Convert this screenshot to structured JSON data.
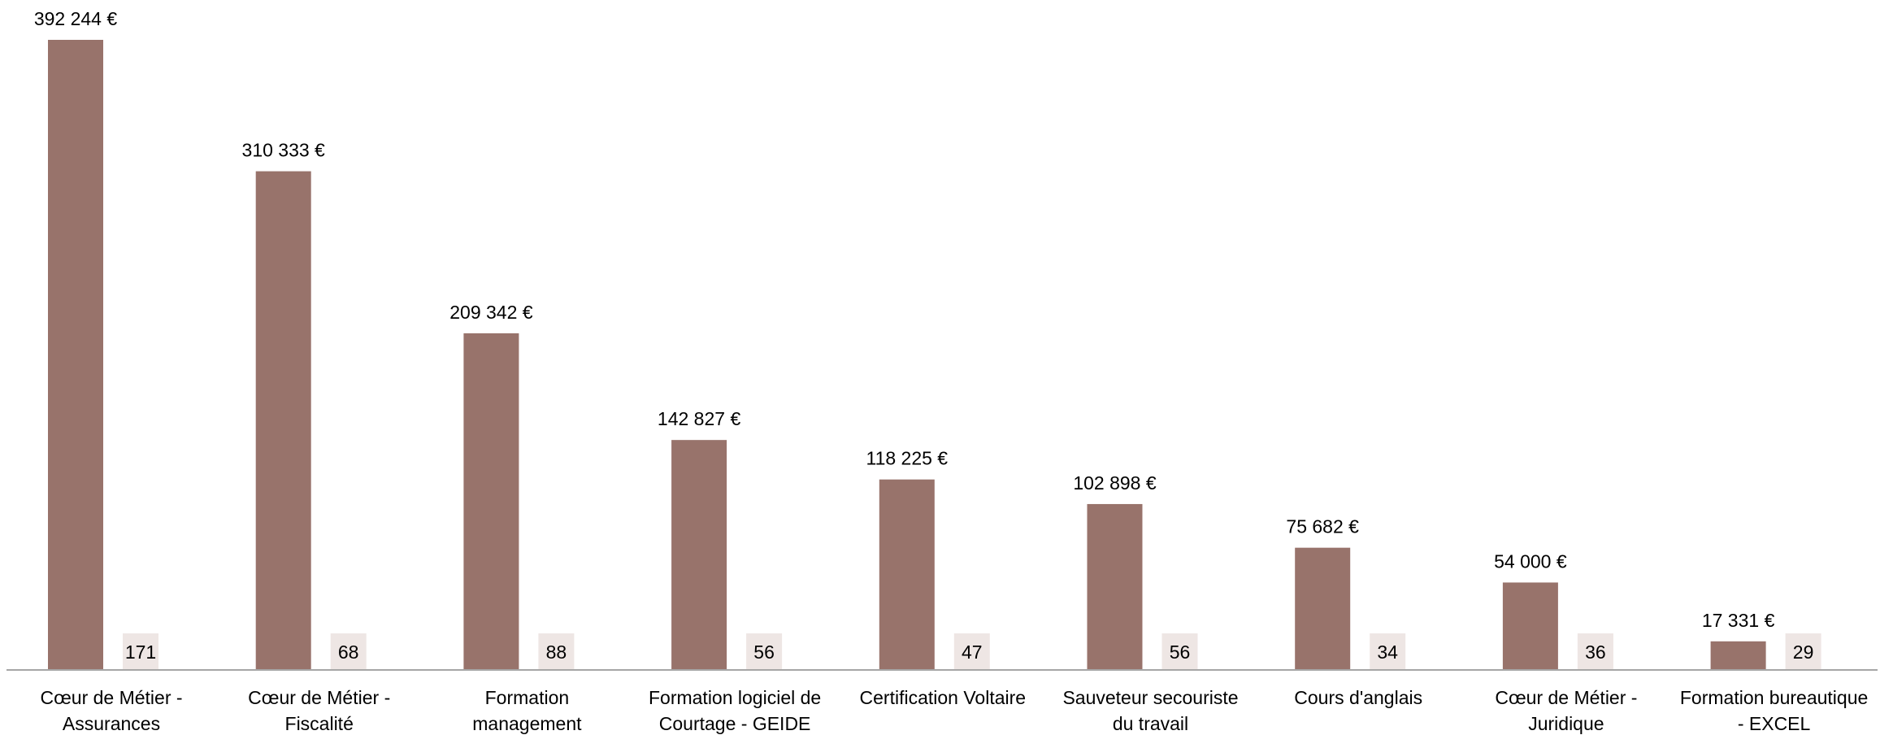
{
  "chart_data": {
    "type": "bar",
    "title": "",
    "xlabel": "",
    "ylabel": "",
    "categories": [
      [
        "Cœur de Métier -",
        "Assurances"
      ],
      [
        "Cœur de Métier -",
        "Fiscalité"
      ],
      [
        "Formation",
        "management"
      ],
      [
        "Formation logiciel de",
        "Courtage - GEIDE"
      ],
      [
        "Certification Voltaire"
      ],
      [
        "Sauveteur secouriste",
        "du travail"
      ],
      [
        "Cours d'anglais"
      ],
      [
        "Cœur de Métier -",
        "Juridique"
      ],
      [
        "Formation bureautique",
        "- EXCEL"
      ]
    ],
    "values": [
      392244,
      310333,
      209342,
      142827,
      118225,
      102898,
      75682,
      54000,
      17331
    ],
    "value_labels": [
      "392 244 €",
      "310 333 €",
      "209 342 €",
      "142 827 €",
      "118 225 €",
      "102 898 €",
      "75 682 €",
      "54 000 €",
      "17 331 €"
    ],
    "counts": [
      "171",
      "68",
      "88",
      "56",
      "47",
      "56",
      "34",
      "36",
      "29"
    ],
    "ylim": [
      0,
      392244
    ],
    "grid": false,
    "legend": "none",
    "colors": {
      "bar": "#98736B",
      "count_box": "#EEE6E4",
      "axis": "#A6A6A6"
    }
  }
}
